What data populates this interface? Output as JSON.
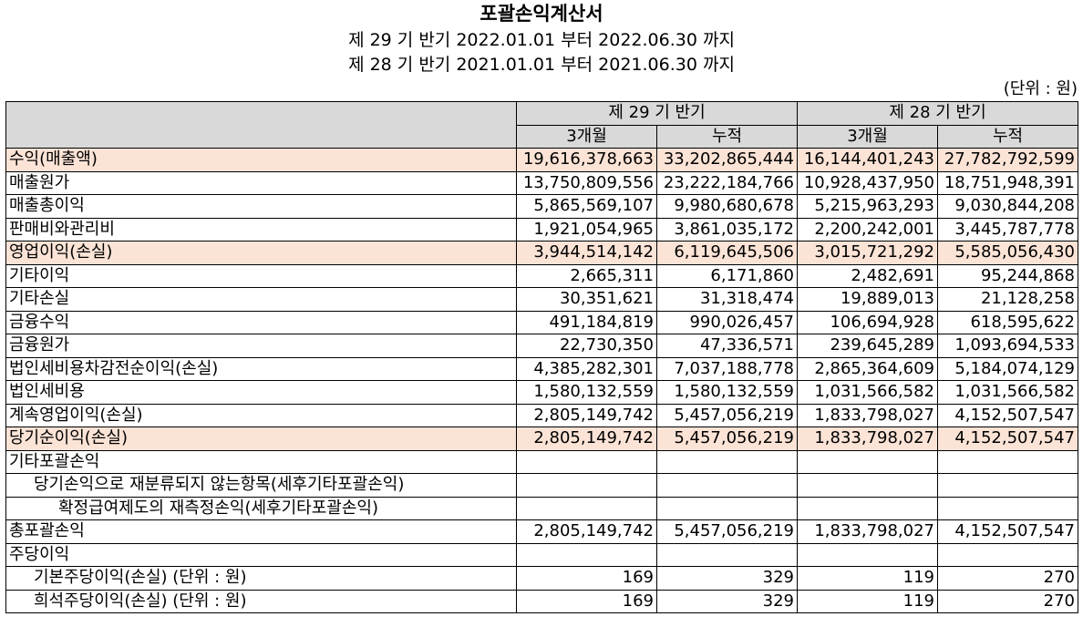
{
  "header": {
    "title": "포괄손익계산서",
    "period_current": "제 29 기 반기 2022.01.01 부터 2022.06.30 까지",
    "period_prior": "제 28 기 반기 2021.01.01 부터 2021.06.30 까지",
    "unit": "(단위 : 원)"
  },
  "columns": {
    "current": "제 29 기 반기",
    "prior": "제 28 기 반기",
    "three_months": "3개월",
    "cumulative": "누적"
  },
  "highlight_color": "#fbe3d6",
  "header_color": "#d9d9d9",
  "rows": [
    {
      "label": "수익(매출액)",
      "values": [
        "19,616,378,663",
        "33,202,865,444",
        "16,144,401,243",
        "27,782,792,599"
      ],
      "highlight": true
    },
    {
      "label": "매출원가",
      "values": [
        "13,750,809,556",
        "23,222,184,766",
        "10,928,437,950",
        "18,751,948,391"
      ]
    },
    {
      "label": "매출총이익",
      "values": [
        "5,865,569,107",
        "9,980,680,678",
        "5,215,963,293",
        "9,030,844,208"
      ]
    },
    {
      "label": "판매비와관리비",
      "values": [
        "1,921,054,965",
        "3,861,035,172",
        "2,200,242,001",
        "3,445,787,778"
      ]
    },
    {
      "label": "영업이익(손실)",
      "values": [
        "3,944,514,142",
        "6,119,645,506",
        "3,015,721,292",
        "5,585,056,430"
      ],
      "highlight": true
    },
    {
      "label": "기타이익",
      "values": [
        "2,665,311",
        "6,171,860",
        "2,482,691",
        "95,244,868"
      ]
    },
    {
      "label": "기타손실",
      "values": [
        "30,351,621",
        "31,318,474",
        "19,889,013",
        "21,128,258"
      ]
    },
    {
      "label": "금융수익",
      "values": [
        "491,184,819",
        "990,026,457",
        "106,694,928",
        "618,595,622"
      ]
    },
    {
      "label": "금융원가",
      "values": [
        "22,730,350",
        "47,336,571",
        "239,645,289",
        "1,093,694,533"
      ]
    },
    {
      "label": "법인세비용차감전순이익(손실)",
      "values": [
        "4,385,282,301",
        "7,037,188,778",
        "2,865,364,609",
        "5,184,074,129"
      ]
    },
    {
      "label": "법인세비용",
      "values": [
        "1,580,132,559",
        "1,580,132,559",
        "1,031,566,582",
        "1,031,566,582"
      ]
    },
    {
      "label": "계속영업이익(손실)",
      "values": [
        "2,805,149,742",
        "5,457,056,219",
        "1,833,798,027",
        "4,152,507,547"
      ]
    },
    {
      "label": "당기순이익(손실)",
      "values": [
        "2,805,149,742",
        "5,457,056,219",
        "1,833,798,027",
        "4,152,507,547"
      ],
      "highlight": true
    },
    {
      "label": "기타포괄손익",
      "values": [
        "",
        "",
        "",
        ""
      ]
    },
    {
      "label": "당기손익으로 재분류되지 않는항목(세후기타포괄손익)",
      "values": [
        "",
        "",
        "",
        ""
      ],
      "indent": 1,
      "span": true
    },
    {
      "label": "확정급여제도의 재측정손익(세후기타포괄손익)",
      "values": [
        "",
        "",
        "",
        ""
      ],
      "indent": 2,
      "span": true
    },
    {
      "label": "총포괄손익",
      "values": [
        "2,805,149,742",
        "5,457,056,219",
        "1,833,798,027",
        "4,152,507,547"
      ]
    },
    {
      "label": "주당이익",
      "values": [
        "",
        "",
        "",
        ""
      ]
    },
    {
      "label": "기본주당이익(손실) (단위 : 원)",
      "values": [
        "169",
        "329",
        "119",
        "270"
      ],
      "indent": 1
    },
    {
      "label": "희석주당이익(손실) (단위 : 원)",
      "values": [
        "169",
        "329",
        "119",
        "270"
      ],
      "indent": 1
    }
  ]
}
